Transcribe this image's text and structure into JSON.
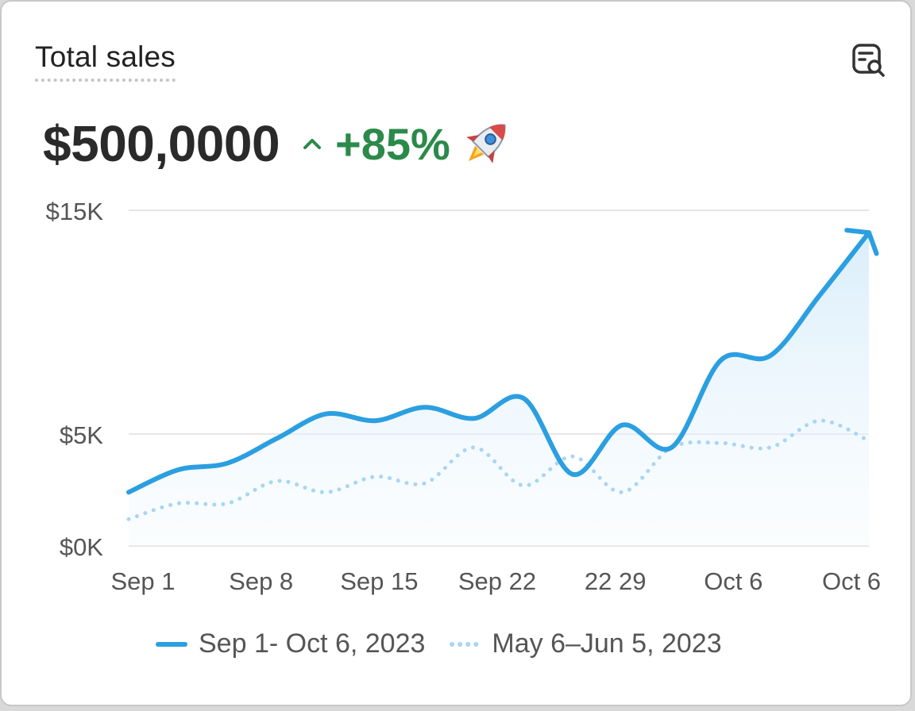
{
  "card": {
    "title": "Total sales",
    "icon": "search-report-icon"
  },
  "headline": {
    "value": "$500,0000",
    "change": "+85%",
    "change_icon": "caret-up-icon",
    "emoji_icon": "rocket-icon"
  },
  "colors": {
    "primary": "#2b9fe0",
    "secondary": "#a9d6f2",
    "positive": "#2b8a4a",
    "grid": "#e6e6e6"
  },
  "chart_data": {
    "type": "line",
    "y_ticks": [
      {
        "label": "$15K",
        "value": 15
      },
      {
        "label": "$5K",
        "value": 5
      },
      {
        "label": "$0K",
        "value": 0
      }
    ],
    "x_ticks": [
      "Sep 1",
      "Sep 8",
      "Sep 15",
      "Sep 22",
      "22 29",
      "Oct 6",
      "Oct 6"
    ],
    "series": [
      {
        "name": "Sep 1- Oct 6, 2023",
        "style": "solid",
        "values": [
          2.4,
          3.4,
          3.7,
          4.8,
          5.9,
          5.6,
          6.2,
          5.7,
          6.6,
          3.2,
          5.4,
          4.4,
          8.3,
          8.5,
          11.2,
          14.0
        ]
      },
      {
        "name": "May 6–Jun 5, 2023",
        "style": "dotted",
        "values": [
          1.2,
          1.9,
          1.9,
          2.9,
          2.4,
          3.1,
          2.8,
          4.4,
          2.7,
          4.0,
          2.4,
          4.4,
          4.6,
          4.4,
          5.6,
          4.7
        ]
      }
    ],
    "ylim": [
      0,
      15
    ],
    "grid": true,
    "legend": "bottom",
    "end_arrow": true
  }
}
